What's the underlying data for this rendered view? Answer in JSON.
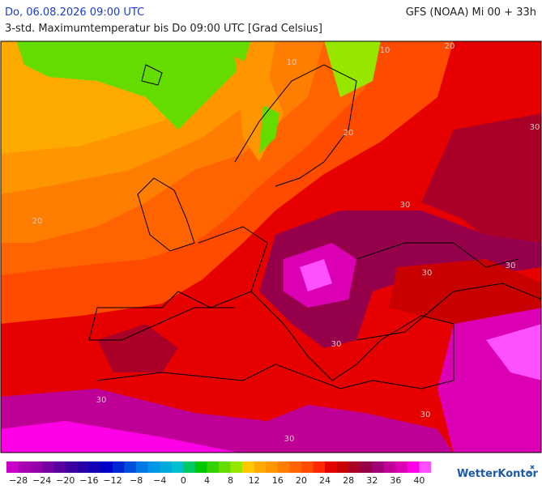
{
  "header": {
    "valid_time": "Do, 06.08.2026 09:00 UTC",
    "model_run": "GFS (NOAA) Mi 00 + 33h",
    "title": "3-std. Maximumtemperatur bis Do 09:00 UTC [Grad Celsius]"
  },
  "map": {
    "contour_labels": [
      "10",
      "10",
      "20",
      "20",
      "30",
      "20",
      "30",
      "30",
      "30",
      "30",
      "30",
      "30",
      "30"
    ]
  },
  "legend": {
    "colors": [
      "#c800c8",
      "#aa00b4",
      "#9600aa",
      "#7800a0",
      "#5a00a0",
      "#3c00a0",
      "#2800aa",
      "#1400b4",
      "#0000c8",
      "#0028d2",
      "#0050dc",
      "#0078e6",
      "#0096e6",
      "#00aadc",
      "#00bed2",
      "#00c864",
      "#00c800",
      "#32d200",
      "#64dc00",
      "#96e600",
      "#ffc800",
      "#ffaa00",
      "#ff9600",
      "#ff7d00",
      "#ff6400",
      "#ff4b00",
      "#ff2800",
      "#e60000",
      "#c80000",
      "#aa0028",
      "#96004b",
      "#a00078",
      "#be0096",
      "#dc00b4",
      "#ff00e6",
      "#ff50ff"
    ],
    "labels": [
      "−28",
      "−24",
      "−20",
      "−16",
      "−12",
      "−8",
      "−4",
      "0",
      "4",
      "8",
      "12",
      "16",
      "20",
      "24",
      "28",
      "32",
      "36",
      "40"
    ]
  },
  "logo": "WetterKontor"
}
